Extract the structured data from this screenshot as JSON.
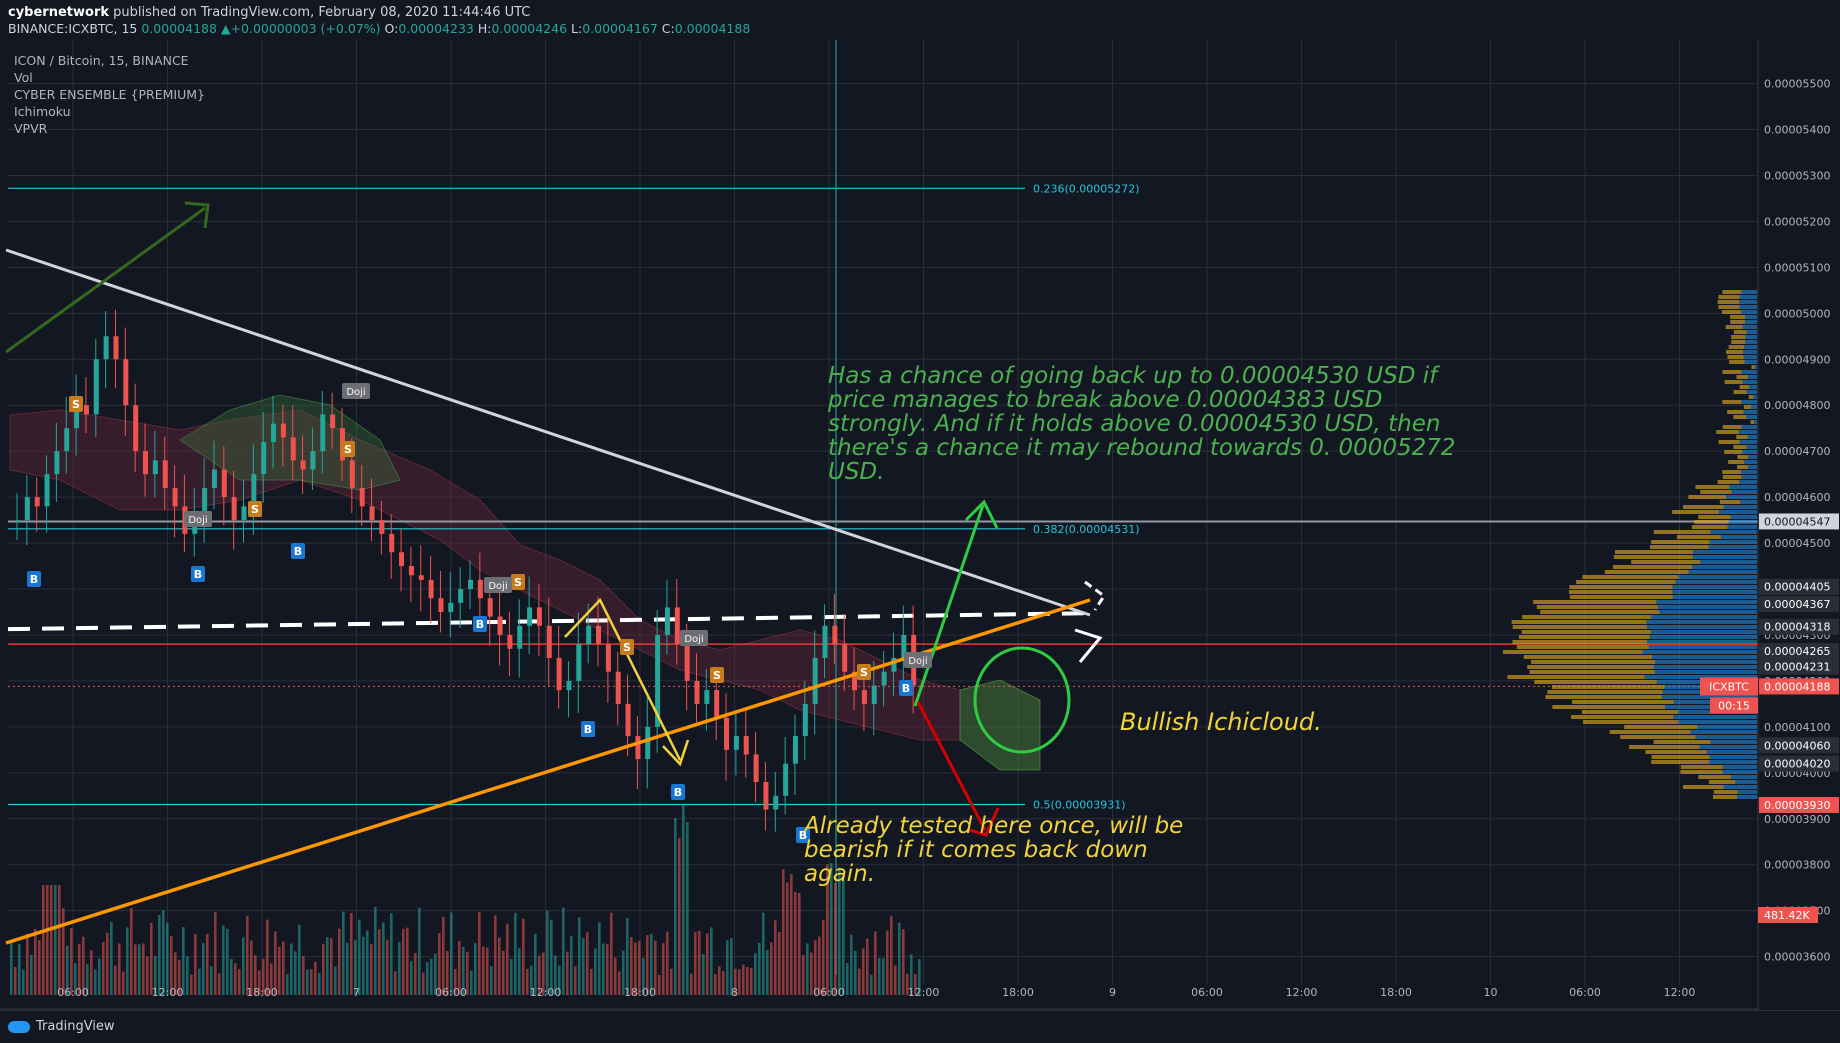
{
  "header": {
    "author": "cybernetwork",
    "published": " published on TradingView.com, February 08, 2020 11:44:46 UTC",
    "symbol": "BINANCE:ICXBTC, 15",
    "last": "0.00004188",
    "change": "+0.00000003 (+0.07%)",
    "o_label": "O:",
    "o": "0.00004233",
    "h_label": "H:",
    "h": "0.00004246",
    "l_label": "L:",
    "l": "0.00004167",
    "c_label": "C:",
    "c": "0.00004188"
  },
  "indicators": [
    "ICON / Bitcoin, 15, BINANCE",
    "Vol",
    "CYBER ENSEMBLE {PREMIUM}",
    "Ichimoku",
    "VPVR"
  ],
  "annotations": {
    "green_note": "Has a chance of going back up to 0.00004530 USD if price manages to break above 0.00004383 USD strongly. And if it holds above 0.00004530 USD, then there's a chance it may rebound towards 0. 00005272 USD.",
    "cloud_note": "Bullish Ichicloud.",
    "bear_note": "Already tested here once, will be bearish if it comes back down again."
  },
  "footer": {
    "logo_text": "TradingView"
  },
  "colors": {
    "background": "#131722",
    "up": "#26a69a",
    "down": "#ef5350",
    "fib": "#26c6da",
    "orange": "#ff9800"
  },
  "chart_data": {
    "type": "candlestick",
    "symbol": "ICXBTC",
    "ylim": [
      3.56e-05,
      5.56e-05
    ],
    "y_ticks": [
      "0.00005500",
      "0.00005400",
      "0.00005300",
      "0.00005200",
      "0.00005100",
      "0.00005000",
      "0.00004900",
      "0.00004800",
      "0.00004700",
      "0.00004600",
      "0.00004500",
      "0.00004400",
      "0.00004300",
      "0.00004200",
      "0.00004100",
      "0.00004000",
      "0.00003900",
      "0.00003800",
      "0.00003700",
      "0.00003600"
    ],
    "y_tick_values": [
      5.5e-05,
      5.4e-05,
      5.3e-05,
      5.2e-05,
      5.1e-05,
      5e-05,
      4.9e-05,
      4.8e-05,
      4.7e-05,
      4.6e-05,
      4.5e-05,
      4.4e-05,
      4.3e-05,
      4.2e-05,
      4.1e-05,
      4e-05,
      3.9e-05,
      3.8e-05,
      3.7e-05,
      3.6e-05
    ],
    "x_ticks": [
      "06:00",
      "12:00",
      "18:00",
      "7",
      "06:00",
      "12:00",
      "18:00",
      "8",
      "06:00",
      "12:00",
      "18:00",
      "9",
      "06:00",
      "12:00",
      "18:00",
      "10",
      "06:00",
      "12:00"
    ],
    "fib_levels": [
      {
        "label": "0.236(0.00005272)",
        "value": 5.272e-05
      },
      {
        "label": "0.382(0.00004531)",
        "value": 4.531e-05
      },
      {
        "label": "0.5(0.00003931)",
        "value": 3.931e-05
      }
    ],
    "price_tags": [
      {
        "label": "0.00004547",
        "value": 4.547e-05,
        "style": "white"
      },
      {
        "label": "0.00004405",
        "value": 4.405e-05,
        "style": "dark"
      },
      {
        "label": "0.00004367",
        "value": 4.367e-05,
        "style": "dark"
      },
      {
        "label": "0.00004318",
        "value": 4.318e-05,
        "style": "dark"
      },
      {
        "label": "0.00004265",
        "value": 4.265e-05,
        "style": "dark"
      },
      {
        "label": "0.00004231",
        "value": 4.231e-05,
        "style": "dark"
      },
      {
        "label": "0.00004188",
        "value": 4.188e-05,
        "style": "red"
      },
      {
        "label": "0.00004060",
        "value": 4.06e-05,
        "style": "dark"
      },
      {
        "label": "0.00004020",
        "value": 4.02e-05,
        "style": "dark"
      },
      {
        "label": "0.00003930",
        "value": 3.93e-05,
        "style": "red"
      }
    ],
    "symbol_tag": "ICXBTC",
    "countdown": "00:15",
    "volume_label": "481.42K",
    "red_level": 4.28e-05,
    "dashed_level": 4.33e-05,
    "close_series": [
      4.55e-05,
      4.6e-05,
      4.58e-05,
      4.65e-05,
      4.7e-05,
      4.75e-05,
      4.8e-05,
      4.78e-05,
      4.9e-05,
      4.95e-05,
      4.9e-05,
      4.8e-05,
      4.7e-05,
      4.65e-05,
      4.68e-05,
      4.62e-05,
      4.58e-05,
      4.52e-05,
      4.57e-05,
      4.62e-05,
      4.66e-05,
      4.6e-05,
      4.55e-05,
      4.58e-05,
      4.65e-05,
      4.72e-05,
      4.76e-05,
      4.73e-05,
      4.68e-05,
      4.66e-05,
      4.7e-05,
      4.78e-05,
      4.75e-05,
      4.68e-05,
      4.62e-05,
      4.58e-05,
      4.55e-05,
      4.52e-05,
      4.48e-05,
      4.45e-05,
      4.43e-05,
      4.42e-05,
      4.38e-05,
      4.35e-05,
      4.37e-05,
      4.4e-05,
      4.42e-05,
      4.38e-05,
      4.34e-05,
      4.3e-05,
      4.27e-05,
      4.32e-05,
      4.36e-05,
      4.32e-05,
      4.25e-05,
      4.18e-05,
      4.2e-05,
      4.28e-05,
      4.32e-05,
      4.28e-05,
      4.22e-05,
      4.15e-05,
      4.08e-05,
      4.03e-05,
      4.1e-05,
      4.3e-05,
      4.36e-05,
      4.28e-05,
      4.2e-05,
      4.15e-05,
      4.18e-05,
      4.12e-05,
      4.05e-05,
      4.08e-05,
      4.04e-05,
      3.98e-05,
      3.92e-05,
      3.95e-05,
      4.02e-05,
      4.08e-05,
      4.15e-05,
      4.25e-05,
      4.32e-05,
      4.28e-05,
      4.22e-05,
      4.18e-05,
      4.15e-05,
      4.19e-05,
      4.22e-05,
      4.25e-05,
      4.3e-05,
      4.19e-05
    ]
  }
}
